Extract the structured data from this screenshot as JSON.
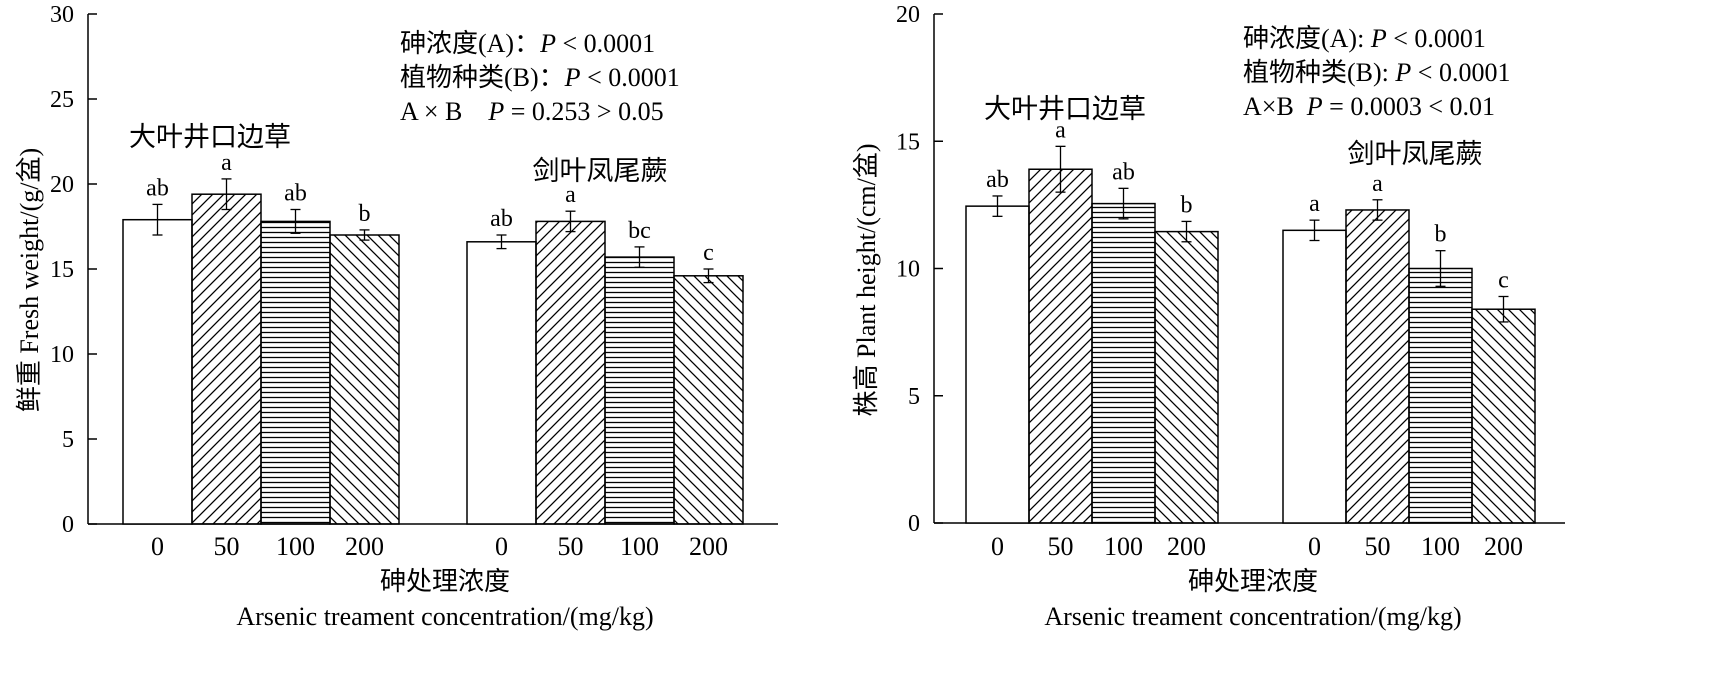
{
  "chart_data": [
    {
      "type": "bar",
      "ylabel": "鲜重 Fresh weight/(g/盆)",
      "xlabel_cn": "砷处理浓度",
      "xlabel_en": "Arsenic treament concentration/(mg/kg)",
      "ylim": [
        0,
        30
      ],
      "yticks": [
        0,
        5,
        10,
        15,
        20,
        25,
        30
      ],
      "grid": false,
      "annotations": [
        {
          "label": "砷浓度(A)：",
          "p": "P",
          "rel": " < 0.0001"
        },
        {
          "label": "植物种类(B)：",
          "p": "P",
          "rel": " < 0.0001"
        },
        {
          "label": "A × B    ",
          "p": "P",
          "rel": " = 0.253 > 0.05"
        }
      ],
      "groups": [
        {
          "name": "大叶井口边草",
          "categories": [
            "0",
            "50",
            "100",
            "200"
          ],
          "values": [
            17.9,
            19.4,
            17.8,
            17.0
          ],
          "errors": [
            0.9,
            0.9,
            0.7,
            0.3
          ],
          "letters": [
            "ab",
            "a",
            "ab",
            "b"
          ]
        },
        {
          "name": "剑叶凤尾蕨",
          "categories": [
            "0",
            "50",
            "100",
            "200"
          ],
          "values": [
            16.6,
            17.8,
            15.7,
            14.6
          ],
          "errors": [
            0.4,
            0.6,
            0.6,
            0.4
          ],
          "letters": [
            "ab",
            "a",
            "bc",
            "c"
          ]
        }
      ]
    },
    {
      "type": "bar",
      "ylabel": "株高 Plant height/(cm/盆)",
      "xlabel_cn": "砷处理浓度",
      "xlabel_en": "Arsenic treament concentration/(mg/kg)",
      "ylim": [
        0,
        20
      ],
      "yticks": [
        0,
        5,
        10,
        15,
        20
      ],
      "grid": false,
      "annotations": [
        {
          "label": "砷浓度(A): ",
          "p": "P",
          "rel": " < 0.0001"
        },
        {
          "label": "植物种类(B): ",
          "p": "P",
          "rel": " < 0.0001"
        },
        {
          "label": "A×B  ",
          "p": "P",
          "rel": " = 0.0003 < 0.01"
        }
      ],
      "groups": [
        {
          "name": "大叶井口边草",
          "categories": [
            "0",
            "50",
            "100",
            "200"
          ],
          "values": [
            12.45,
            13.9,
            12.55,
            11.45
          ],
          "errors": [
            0.4,
            0.9,
            0.6,
            0.4
          ],
          "letters": [
            "ab",
            "a",
            "ab",
            "b"
          ]
        },
        {
          "name": "剑叶凤尾蕨",
          "categories": [
            "0",
            "50",
            "100",
            "200"
          ],
          "values": [
            11.5,
            12.3,
            10.0,
            8.4
          ],
          "errors": [
            0.4,
            0.4,
            0.7,
            0.5
          ],
          "letters": [
            "a",
            "a",
            "b",
            "c"
          ]
        }
      ]
    }
  ],
  "patterns": [
    "none",
    "diag-up",
    "horizontal",
    "diag-down"
  ]
}
